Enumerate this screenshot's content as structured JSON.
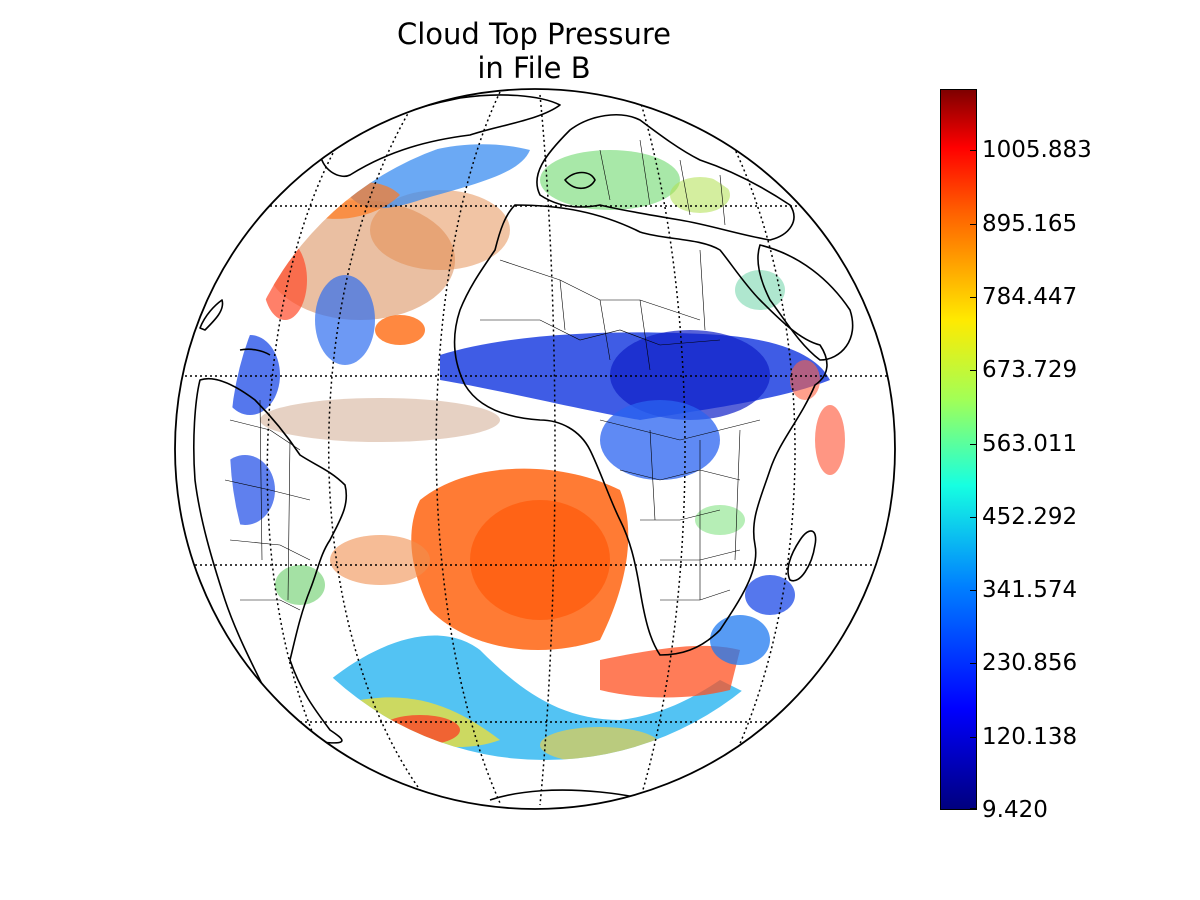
{
  "figure": {
    "title_line1": "Cloud Top Pressure",
    "title_line2": "in File B"
  },
  "map": {
    "projection": "orthographic",
    "gridlines": "dotted",
    "coastlines": true,
    "country_borders": true
  },
  "colorbar": {
    "colormap": "jet",
    "min": 9.42,
    "labels": [
      "9.420",
      "120.138",
      "230.856",
      "341.574",
      "452.292",
      "563.011",
      "673.729",
      "784.447",
      "895.165",
      "1005.883"
    ]
  }
}
